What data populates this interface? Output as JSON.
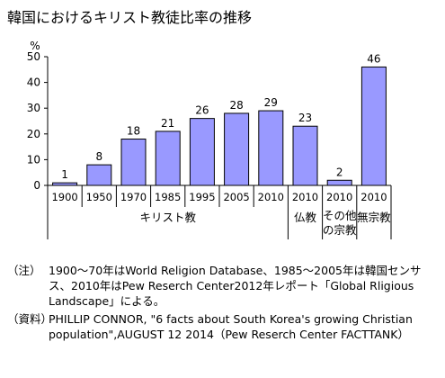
{
  "title": "韓国におけるキリスト教徒比率の推移",
  "chart_data": {
    "type": "bar",
    "y_unit": "%",
    "ylim": [
      0,
      50
    ],
    "yticks": [
      "0",
      "10",
      "20",
      "30",
      "40",
      "50"
    ],
    "gridlines": false,
    "bar_color": "#9999ff",
    "bar_stroke": "#000000",
    "categories": [
      "1900",
      "1950",
      "1970",
      "1985",
      "1995",
      "2005",
      "2010",
      "2010",
      "2010",
      "2010"
    ],
    "values": [
      1,
      8,
      18,
      21,
      26,
      28,
      29,
      23,
      2,
      46
    ],
    "data_labels": [
      "1",
      "8",
      "18",
      "21",
      "26",
      "28",
      "29",
      "23",
      "2",
      "46"
    ],
    "groups": [
      {
        "label": "キリスト教",
        "start": 0,
        "end": 6
      },
      {
        "label": "仏教",
        "start": 7,
        "end": 7
      },
      {
        "label": "その他の宗教",
        "start": 8,
        "end": 8
      },
      {
        "label": "無宗教",
        "start": 9,
        "end": 9
      }
    ]
  },
  "notes": [
    {
      "tag": "（注）",
      "text": "1900～70年はWorld Religion Database、1985～2005年は韓国センサス、2010年はPew Reserch Center2012年レポート「Global Rligious Landscape」による。"
    },
    {
      "tag": "（資料）",
      "text": "PHILLIP CONNOR, \"6 facts about South Korea's growing Christian population\",AUGUST 12 2014（Pew Reserch Center FACTTANK）"
    }
  ]
}
